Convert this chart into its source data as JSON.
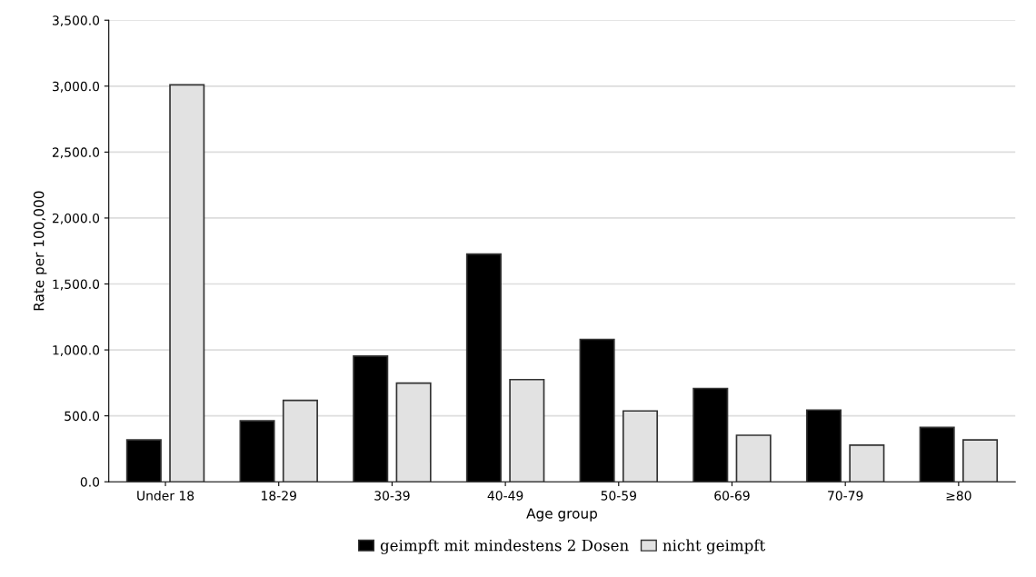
{
  "chart_data": {
    "type": "bar",
    "xlabel": "Age group",
    "ylabel": "Rate per 100,000",
    "categories": [
      "Under 18",
      "18-29",
      "30-39",
      "40-49",
      "50-59",
      "60-69",
      "70-79",
      "≥80"
    ],
    "series": [
      {
        "name": "geimpft mit mindestens 2 Dosen",
        "color": "#000000",
        "values": [
          318,
          462,
          953,
          1727,
          1080,
          708,
          544,
          412
        ]
      },
      {
        "name": "nicht geimpft",
        "color": "#e2e2e2",
        "values": [
          3010,
          617,
          748,
          775,
          537,
          353,
          278,
          318
        ]
      }
    ],
    "ylim": [
      0,
      3500
    ],
    "yticks": [
      {
        "value": 0,
        "label": "0.0"
      },
      {
        "value": 500,
        "label": "500.0"
      },
      {
        "value": 1000,
        "label": "1,000.0"
      },
      {
        "value": 1500,
        "label": "1,500.0"
      },
      {
        "value": 2000,
        "label": "2,000.0"
      },
      {
        "value": 2500,
        "label": "2,500.0"
      },
      {
        "value": 3000,
        "label": "3,000.0"
      },
      {
        "value": 3500,
        "label": "3,500.0"
      }
    ],
    "grid": "y",
    "legend": "bottom"
  }
}
